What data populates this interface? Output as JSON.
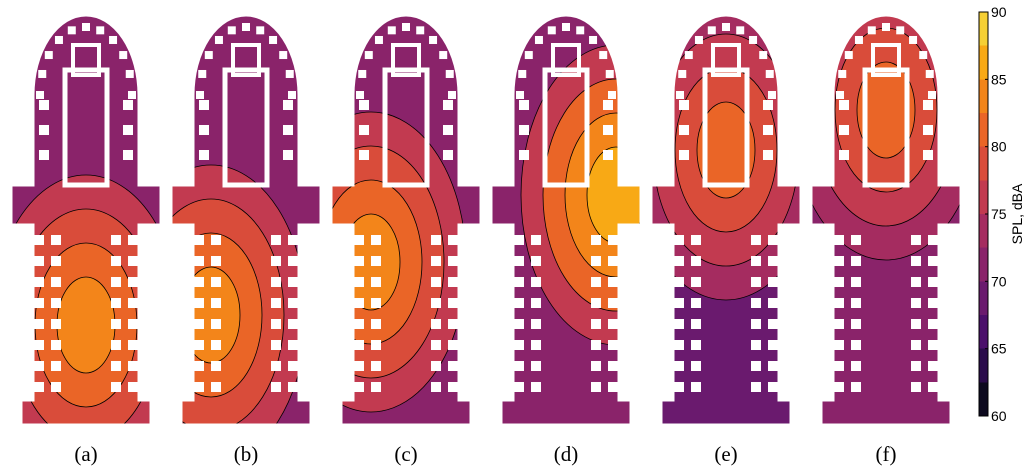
{
  "chart_data": {
    "type": "heatmap",
    "panels": [
      {
        "label": "(a)",
        "source_region": "nave-lower"
      },
      {
        "label": "(b)",
        "source_region": "nave-left-lower"
      },
      {
        "label": "(c)",
        "source_region": "nave-left-mid"
      },
      {
        "label": "(d)",
        "source_region": "transept-right"
      },
      {
        "label": "(e)",
        "source_region": "apse-mid"
      },
      {
        "label": "(f)",
        "source_region": "apse-upper"
      }
    ],
    "panel_levels": [
      {
        "base": 76,
        "peak": 84,
        "far": 71
      },
      {
        "base": 76,
        "peak": 83,
        "far": 71
      },
      {
        "base": 77,
        "peak": 83,
        "far": 72
      },
      {
        "base": 77,
        "peak": 86,
        "far": 72
      },
      {
        "base": 73,
        "peak": 81,
        "far": 69
      },
      {
        "base": 74,
        "peak": 82,
        "far": 70
      }
    ],
    "colorbar": {
      "label": "SPL, dBA",
      "min": 60,
      "max": 90,
      "ticks": [
        60,
        65,
        70,
        75,
        80,
        85,
        90
      ],
      "levels": [
        60,
        62.5,
        65,
        67.5,
        70,
        72.5,
        75,
        77.5,
        80,
        82.5,
        85,
        87.5,
        90
      ],
      "colors": [
        "#0d0a1f",
        "#2a0b4b",
        "#4b0f6b",
        "#6a1a6e",
        "#8a236a",
        "#a52c60",
        "#c23a50",
        "#d94c3a",
        "#ea6527",
        "#f3851a",
        "#f8a915",
        "#f5cf34",
        "#f8f39a"
      ]
    }
  }
}
